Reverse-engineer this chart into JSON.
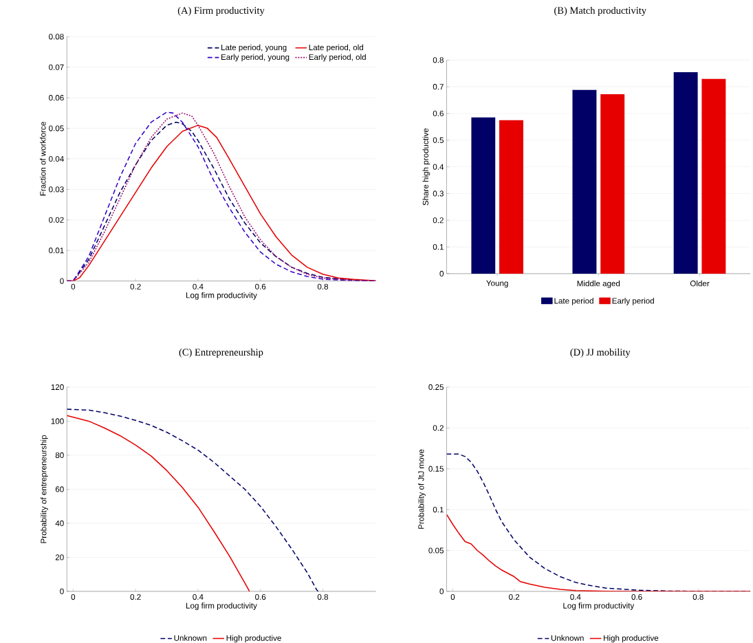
{
  "chart_data": [
    {
      "type": "line",
      "title": "(A) Firm productivity",
      "xlabel": "Log firm productivity",
      "ylabel": "Fraction of workforce",
      "xlim": [
        -0.02,
        0.97
      ],
      "xticks": [
        0,
        0.2,
        0.4,
        0.6,
        0.8
      ],
      "ylim": [
        0,
        0.08
      ],
      "yticks": [
        0,
        0.01,
        0.02,
        0.03,
        0.04,
        0.05,
        0.06,
        0.07,
        0.08
      ],
      "grid": "y",
      "legend": "top right",
      "series": [
        {
          "name": "Late period, young",
          "color": "#000066",
          "line_style": "dashed",
          "x": [
            -0.02,
            0,
            0.05,
            0.1,
            0.15,
            0.2,
            0.25,
            0.3,
            0.33,
            0.35,
            0.38,
            0.4,
            0.45,
            0.5,
            0.55,
            0.6,
            0.65,
            0.7,
            0.75,
            0.8,
            0.9,
            0.97
          ],
          "values": [
            0,
            0,
            0.007,
            0.018,
            0.029,
            0.038,
            0.046,
            0.051,
            0.052,
            0.0515,
            0.049,
            0.046,
            0.037,
            0.027,
            0.019,
            0.0125,
            0.008,
            0.0045,
            0.0025,
            0.0012,
            0.0003,
            0
          ]
        },
        {
          "name": "Late period, old",
          "color": "#e60000",
          "line_style": "solid",
          "x": [
            -0.02,
            0,
            0.02,
            0.05,
            0.1,
            0.15,
            0.2,
            0.25,
            0.3,
            0.35,
            0.4,
            0.43,
            0.46,
            0.5,
            0.55,
            0.6,
            0.65,
            0.7,
            0.75,
            0.8,
            0.85,
            0.9,
            0.97
          ],
          "values": [
            0,
            0,
            0.001,
            0.005,
            0.013,
            0.021,
            0.029,
            0.037,
            0.044,
            0.049,
            0.051,
            0.05,
            0.047,
            0.04,
            0.031,
            0.022,
            0.0145,
            0.0085,
            0.0045,
            0.0022,
            0.001,
            0.0005,
            0.0001
          ]
        },
        {
          "name": "Early period, young",
          "color": "#3300cc",
          "line_style": "dashed",
          "x": [
            -0.02,
            0,
            0.05,
            0.1,
            0.15,
            0.2,
            0.25,
            0.3,
            0.32,
            0.35,
            0.4,
            0.45,
            0.5,
            0.55,
            0.6,
            0.65,
            0.7,
            0.75,
            0.8,
            0.9,
            0.97
          ],
          "values": [
            0,
            0,
            0.008,
            0.021,
            0.034,
            0.045,
            0.052,
            0.0553,
            0.055,
            0.052,
            0.044,
            0.033,
            0.024,
            0.016,
            0.0095,
            0.0055,
            0.003,
            0.0015,
            0.0006,
            0.0001,
            0
          ]
        },
        {
          "name": "Early period, old",
          "color": "#990066",
          "line_style": "dotted",
          "x": [
            -0.02,
            0,
            0.05,
            0.1,
            0.15,
            0.2,
            0.25,
            0.3,
            0.35,
            0.38,
            0.4,
            0.45,
            0.5,
            0.55,
            0.6,
            0.65,
            0.7,
            0.75,
            0.8,
            0.9,
            0.97
          ],
          "values": [
            0,
            0,
            0.006,
            0.016,
            0.027,
            0.038,
            0.047,
            0.053,
            0.055,
            0.054,
            0.051,
            0.042,
            0.031,
            0.021,
            0.0135,
            0.008,
            0.0045,
            0.0022,
            0.001,
            0.0002,
            0
          ]
        }
      ]
    },
    {
      "type": "bar",
      "title": "(B) Match productivity",
      "ylabel": "Share high productive",
      "categories": [
        "Young",
        "Middle aged",
        "Older"
      ],
      "ylim": [
        0,
        0.8
      ],
      "yticks": [
        0,
        0.1,
        0.2,
        0.3,
        0.4,
        0.5,
        0.6,
        0.7,
        0.8
      ],
      "grid": "y",
      "legend": "bottom",
      "series": [
        {
          "name": "Late period",
          "color": "#000066",
          "values": [
            0.585,
            0.688,
            0.755
          ]
        },
        {
          "name": "Early period",
          "color": "#e60000",
          "values": [
            0.575,
            0.672,
            0.73
          ]
        }
      ]
    },
    {
      "type": "line",
      "title": "(C) Entrepreneurship",
      "xlabel": "Log firm productivity",
      "ylabel": "Probability of entrepreneurship",
      "xlim": [
        -0.02,
        0.97
      ],
      "xticks": [
        0,
        0.2,
        0.4,
        0.6,
        0.8
      ],
      "ylim": [
        0,
        120
      ],
      "yticks": [
        0,
        20,
        40,
        60,
        80,
        100,
        120
      ],
      "grid": "y",
      "legend": "bottom",
      "series": [
        {
          "name": "Unknown",
          "color": "#000066",
          "line_style": "dashed",
          "x": [
            -0.02,
            0.05,
            0.1,
            0.15,
            0.2,
            0.25,
            0.3,
            0.35,
            0.4,
            0.45,
            0.5,
            0.55,
            0.6,
            0.65,
            0.7,
            0.75,
            0.78,
            0.785
          ],
          "values": [
            107,
            106.5,
            105,
            103,
            100.5,
            97.5,
            93.5,
            88.5,
            83,
            76,
            68,
            60,
            50,
            38,
            25,
            11,
            1,
            0
          ]
        },
        {
          "name": "High productive",
          "color": "#e60000",
          "line_style": "solid",
          "x": [
            -0.02,
            0.05,
            0.1,
            0.15,
            0.2,
            0.25,
            0.3,
            0.35,
            0.4,
            0.45,
            0.5,
            0.55,
            0.565
          ],
          "values": [
            103.3,
            100,
            96,
            91.5,
            86,
            79.5,
            71,
            61,
            49.5,
            35.5,
            21,
            5,
            0
          ]
        }
      ]
    },
    {
      "type": "line",
      "title": "(D) JJ mobility",
      "xlabel": "Log firm productivity",
      "ylabel": "Probability of JtJ move",
      "xlim": [
        -0.02,
        0.97
      ],
      "xticks": [
        0,
        0.2,
        0.4,
        0.6,
        0.8
      ],
      "ylim": [
        0,
        0.25
      ],
      "yticks": [
        0,
        0.05,
        0.1,
        0.15,
        0.2,
        0.25
      ],
      "grid": "y",
      "legend": "bottom",
      "series": [
        {
          "name": "Unknown",
          "color": "#000066",
          "line_style": "dashed",
          "x": [
            -0.02,
            0.02,
            0.04,
            0.06,
            0.08,
            0.1,
            0.12,
            0.14,
            0.16,
            0.2,
            0.25,
            0.3,
            0.35,
            0.4,
            0.45,
            0.5,
            0.6,
            0.7,
            0.8,
            0.97
          ],
          "values": [
            0.168,
            0.168,
            0.165,
            0.158,
            0.147,
            0.133,
            0.117,
            0.1,
            0.085,
            0.063,
            0.042,
            0.028,
            0.018,
            0.011,
            0.007,
            0.004,
            0.0015,
            0.0004,
            0.0001,
            0
          ]
        },
        {
          "name": "High productive",
          "color": "#e60000",
          "line_style": "solid",
          "x": [
            -0.02,
            0,
            0.02,
            0.04,
            0.06,
            0.08,
            0.1,
            0.12,
            0.14,
            0.16,
            0.2,
            0.22,
            0.25,
            0.3,
            0.35,
            0.4,
            0.5,
            0.6,
            0.97
          ],
          "values": [
            0.094,
            0.082,
            0.071,
            0.061,
            0.058,
            0.05,
            0.044,
            0.037,
            0.031,
            0.026,
            0.018,
            0.012,
            0.009,
            0.005,
            0.0025,
            0.001,
            0.0002,
            0,
            0
          ]
        }
      ]
    }
  ]
}
